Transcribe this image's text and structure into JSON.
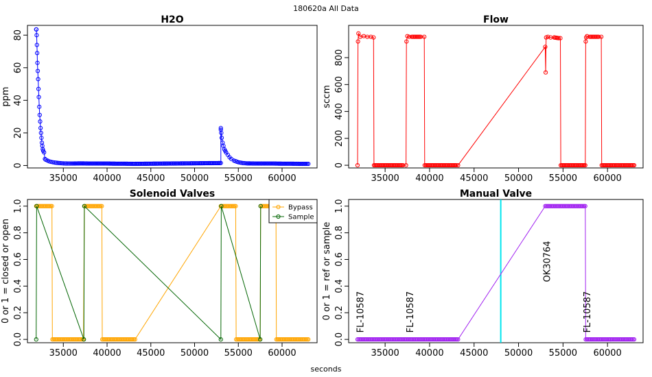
{
  "figure": {
    "title": "180620a   All Data",
    "xlabel": "seconds"
  },
  "chart_data": [
    {
      "type": "scatter",
      "title": "H2O",
      "xlabel": "",
      "ylabel": "ppm",
      "xlim": [
        30900,
        64000
      ],
      "ylim": [
        -1.5,
        86
      ],
      "xticks": [
        35000,
        40000,
        45000,
        50000,
        55000,
        60000
      ],
      "yticks": [
        0,
        20,
        40,
        60,
        80
      ],
      "series": [
        {
          "name": "H2O",
          "color": "#0000ff",
          "x": [
            31900,
            31920,
            31950,
            31980,
            32010,
            32040,
            32080,
            32120,
            32160,
            32200,
            32250,
            32300,
            32350,
            32400,
            32450,
            32500,
            32550,
            32600,
            32650,
            32700,
            32800,
            32900,
            33000,
            33200,
            33400,
            33600,
            33800,
            34000,
            34500,
            35000,
            35500,
            36000,
            37000,
            38000,
            39000,
            40000,
            41000,
            42000,
            43000,
            53000,
            53000,
            53000,
            53050,
            53100,
            53200,
            53300,
            53400,
            53500,
            53600,
            53800,
            54000,
            54200,
            54500,
            55000,
            55500,
            56000,
            57000,
            58000,
            59000,
            60000,
            61000,
            62000,
            63000
          ],
          "y": [
            83.5,
            83.5,
            80,
            74,
            69,
            63,
            58,
            53,
            47,
            42,
            36,
            31,
            27,
            23,
            20,
            17,
            14,
            12,
            10,
            9,
            8,
            4,
            3.5,
            3,
            2.5,
            2.2,
            2,
            1.8,
            1.5,
            1.3,
            1.2,
            1.2,
            1.3,
            1.2,
            1.2,
            1.2,
            1.1,
            1.1,
            1,
            1.5,
            23,
            22,
            20,
            17,
            14,
            12,
            10,
            9,
            8,
            6.5,
            5,
            4,
            3,
            2,
            1.5,
            1.3,
            1.2,
            1.2,
            1.2,
            1.1,
            1.1,
            1,
            1
          ]
        }
      ]
    },
    {
      "type": "scatter",
      "title": "Flow",
      "xlabel": "",
      "ylabel": "sccm",
      "xlim": [
        30900,
        64000
      ],
      "ylim": [
        -20,
        1040
      ],
      "xticks": [
        35000,
        40000,
        45000,
        50000,
        55000,
        60000
      ],
      "yticks": [
        0,
        200,
        400,
        600,
        800
      ],
      "series": [
        {
          "name": "Flow",
          "color": "#ff0000",
          "x": [
            31900,
            31950,
            32000,
            32200,
            32600,
            33000,
            33400,
            33700,
            33750,
            34500,
            35500,
            36500,
            37000,
            37350,
            37400,
            37500,
            37700,
            38000,
            38500,
            39000,
            39400,
            39450,
            40000,
            41000,
            42000,
            43000,
            43200,
            53000,
            53050,
            53100,
            53300,
            53600,
            54000,
            54500,
            54700,
            54750,
            55500,
            56500,
            57500,
            57550,
            57600,
            57700,
            58000,
            58500,
            59000,
            59300,
            59350,
            60000,
            61000,
            62000,
            63000
          ],
          "y": [
            0,
            920,
            980,
            955,
            960,
            955,
            955,
            950,
            0,
            0,
            0,
            0,
            0,
            0,
            920,
            960,
            955,
            955,
            955,
            955,
            955,
            0,
            0,
            0,
            0,
            0,
            0,
            880,
            690,
            950,
            955,
            950,
            950,
            945,
            945,
            0,
            0,
            0,
            0,
            920,
            950,
            960,
            955,
            955,
            955,
            955,
            0,
            0,
            0,
            0,
            0
          ]
        }
      ]
    },
    {
      "type": "line",
      "title": "Solenoid Valves",
      "xlabel": "",
      "ylabel": "0 or 1 = closed or open",
      "xlim": [
        30900,
        64000
      ],
      "ylim": [
        -0.025,
        1.05
      ],
      "xticks": [
        35000,
        40000,
        45000,
        50000,
        55000,
        60000
      ],
      "yticks": [
        0.0,
        0.2,
        0.4,
        0.6,
        0.8,
        1.0
      ],
      "legend": {
        "position": "top-right",
        "entries": [
          "Bypass",
          "Sample"
        ]
      },
      "series": [
        {
          "name": "Bypass",
          "color": "#ffa500",
          "x": [
            31900,
            33700,
            33750,
            37300,
            37400,
            39400,
            39450,
            43200,
            53000,
            54700,
            54750,
            57500,
            57550,
            59300,
            59350,
            63000
          ],
          "y": [
            1,
            1,
            0,
            0,
            1,
            1,
            0,
            0,
            1,
            1,
            0,
            0,
            1,
            1,
            0,
            0
          ]
        },
        {
          "name": "Sample",
          "color": "#006400",
          "x": [
            31900,
            31950,
            37350,
            37400,
            53000,
            53050,
            57500,
            57550
          ],
          "y": [
            0,
            1,
            0,
            1,
            0,
            1,
            0,
            1
          ]
        }
      ]
    },
    {
      "type": "line",
      "title": "Manual Valve",
      "xlabel": "",
      "ylabel": "0 or 1 = ref or sample",
      "xlim": [
        30900,
        64000
      ],
      "ylim": [
        -0.025,
        1.05
      ],
      "xticks": [
        35000,
        40000,
        45000,
        50000,
        55000,
        60000
      ],
      "yticks": [
        0.0,
        0.2,
        0.4,
        0.6,
        0.8,
        1.0
      ],
      "series": [
        {
          "name": "Manual Valve",
          "color": "#a020f0",
          "x": [
            31900,
            43200,
            53000,
            57500,
            57550,
            63000
          ],
          "y": [
            0,
            0,
            1,
            1,
            0,
            0
          ]
        }
      ],
      "vline": {
        "x": 48000,
        "color": "#00e5ee"
      },
      "annotations": [
        {
          "text": "FL-10587",
          "x": 32100,
          "y": 0.05,
          "color": "#00ff00"
        },
        {
          "text": "FL-10587",
          "x": 37700,
          "y": 0.05,
          "color": "#00ff00"
        },
        {
          "text": "OK30764",
          "x": 53100,
          "y": 0.43,
          "color": "#00e5ee"
        },
        {
          "text": "FL-10587",
          "x": 57600,
          "y": 0.05,
          "color": "#00ff00"
        }
      ]
    }
  ]
}
